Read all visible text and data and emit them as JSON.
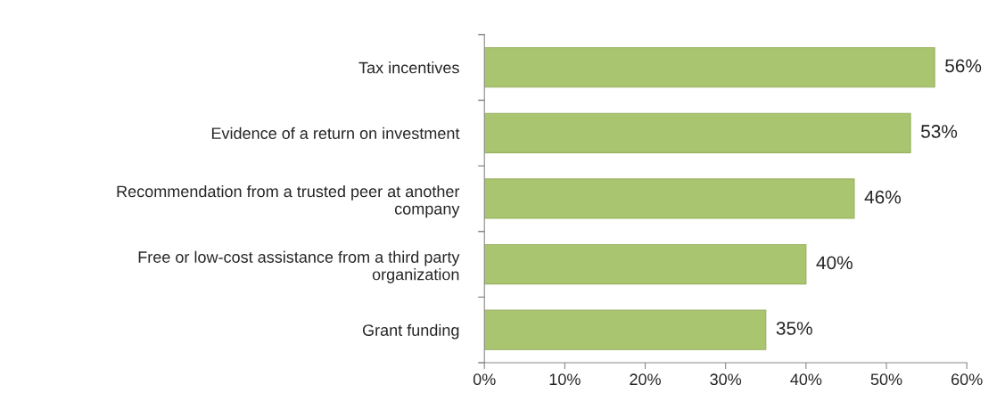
{
  "chart_data": {
    "type": "bar",
    "orientation": "horizontal",
    "categories": [
      "Tax incentives",
      "Evidence of a return on investment",
      "Recommendation from a trusted peer at another\ncompany",
      "Free or low-cost assistance from a third party\norganization",
      "Grant funding"
    ],
    "values": [
      56,
      53,
      46,
      40,
      35
    ],
    "color": "#a9c56f",
    "value_labels": [
      "56%",
      "53%",
      "46%",
      "40%",
      "35%"
    ],
    "xlim": [
      0,
      60
    ],
    "xticks": [
      {
        "value": 0,
        "label": "0%"
      },
      {
        "value": 10,
        "label": "10%"
      },
      {
        "value": 20,
        "label": "20%"
      },
      {
        "value": 30,
        "label": "30%"
      },
      {
        "value": 40,
        "label": "40%"
      },
      {
        "value": 50,
        "label": "50%"
      },
      {
        "value": 60,
        "label": "60%"
      }
    ],
    "grid": false,
    "legend": false
  }
}
